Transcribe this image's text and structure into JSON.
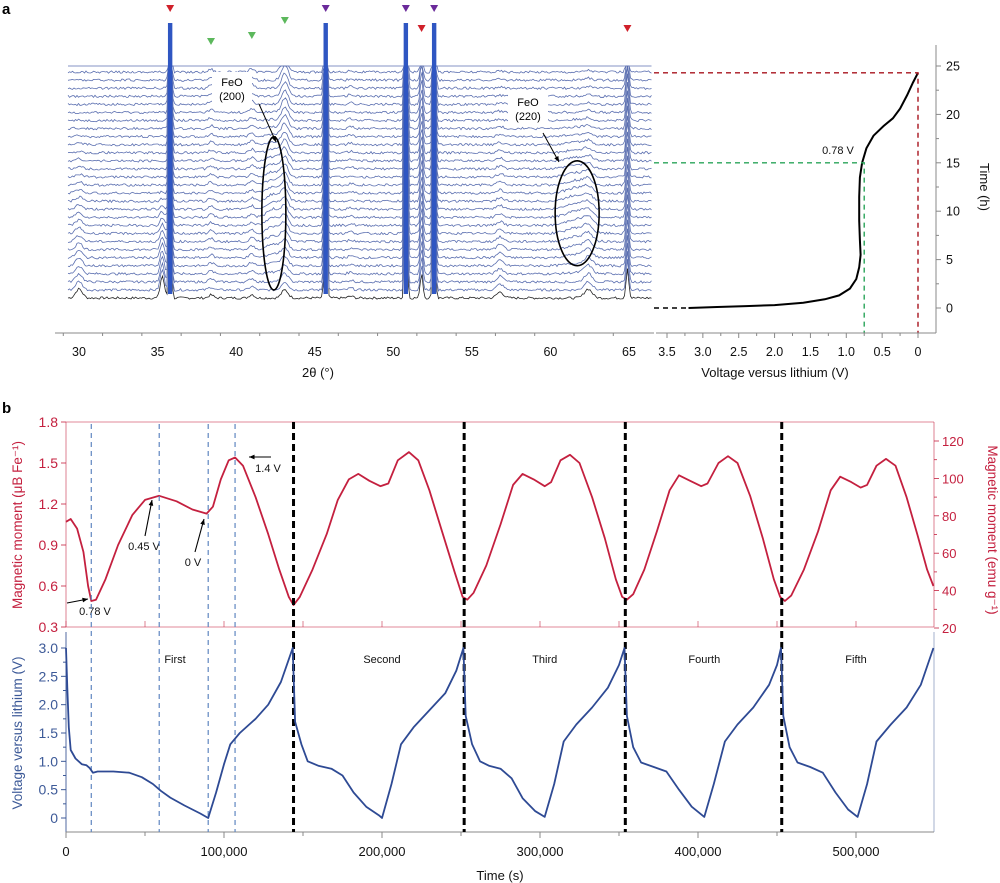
{
  "figure": {
    "panel_a_label": "a",
    "panel_b_label": "b"
  },
  "colors": {
    "xrd_trace": "#5b6fb0",
    "xrd_bottom_trace": "#222222",
    "xrd_strong_peak": "#2f56c2",
    "marker_red": "#d0202a",
    "marker_green": "#5cb85c",
    "marker_purple": "#6a2a9a",
    "magnetic": "#c4203f",
    "magnetic_axis": "#c4203f",
    "voltage": "#2e4a94",
    "voltage_axis": "#3d5a98",
    "guide_blue": "#5f86c0",
    "cycle_divider": "#000000",
    "green_guide": "#2aa45a",
    "red_guide": "#a8141e"
  },
  "chart_data": [
    {
      "id": "xrd-stack",
      "type": "line",
      "title": "",
      "xlabel": "2θ (°)",
      "ylabel": "",
      "xlim": [
        28,
        66
      ],
      "xticks": [
        30,
        35,
        40,
        45,
        50,
        55,
        60,
        65
      ],
      "trace_count": 30,
      "grid": false,
      "peaks": [
        {
          "two_theta": 30.0,
          "type": "substrate-minor",
          "rel": 0.5
        },
        {
          "two_theta": 35.3,
          "type": "minor",
          "rel": 0.8
        },
        {
          "two_theta": 35.8,
          "type": "strong",
          "rel": 8
        },
        {
          "two_theta": 38.4,
          "type": "green",
          "rel": 0.5
        },
        {
          "two_theta": 41.0,
          "type": "green",
          "rel": 0.6
        },
        {
          "two_theta": 43.1,
          "type": "green",
          "rel": 1.0
        },
        {
          "two_theta": 45.7,
          "type": "strong",
          "rel": 8
        },
        {
          "two_theta": 47.3,
          "type": "minor",
          "rel": 0.3
        },
        {
          "two_theta": 50.8,
          "type": "strong",
          "rel": 8
        },
        {
          "two_theta": 51.8,
          "type": "red",
          "rel": 2.5
        },
        {
          "two_theta": 52.6,
          "type": "strong",
          "rel": 8
        },
        {
          "two_theta": 56.8,
          "type": "minor",
          "rel": 0.4
        },
        {
          "two_theta": 62.4,
          "type": "minor",
          "rel": 0.6
        },
        {
          "two_theta": 64.9,
          "type": "red",
          "rel": 3
        }
      ],
      "markers": [
        {
          "two_theta": 35.8,
          "color": "red",
          "level": "top"
        },
        {
          "two_theta": 38.4,
          "color": "green",
          "level": "low"
        },
        {
          "two_theta": 41.0,
          "color": "green",
          "level": "mid"
        },
        {
          "two_theta": 43.1,
          "color": "green",
          "level": "high"
        },
        {
          "two_theta": 45.7,
          "color": "purple",
          "level": "top"
        },
        {
          "two_theta": 50.8,
          "color": "purple",
          "level": "top"
        },
        {
          "two_theta": 51.8,
          "color": "red",
          "level": "mid2"
        },
        {
          "two_theta": 52.6,
          "color": "purple",
          "level": "top"
        },
        {
          "two_theta": 64.9,
          "color": "red",
          "level": "mid2"
        }
      ],
      "annotations": [
        {
          "label": "FeO",
          "sublabel": "(200)",
          "ellipse_center_two_theta": 42.4,
          "ellipse_span_traces": [
            1,
            20
          ]
        },
        {
          "label": "FeO",
          "sublabel": "(220)",
          "ellipse_center_two_theta": 61.7,
          "ellipse_span_traces": [
            4,
            17
          ]
        }
      ]
    },
    {
      "id": "voltage-time",
      "type": "line",
      "title": "",
      "xlabel": "Voltage versus lithium (V)",
      "ylabel": "Time (h)",
      "xlim": [
        3.5,
        -0.2
      ],
      "ylim": [
        -2.5,
        27
      ],
      "xticks": [
        3.5,
        3.0,
        2.5,
        2.0,
        1.5,
        1.0,
        0.5,
        0
      ],
      "xtick_labels": [
        "3.5",
        "3.0",
        "2.5",
        "2.0",
        "1.5",
        "1.0",
        "0.5",
        "0"
      ],
      "yticks": [
        0,
        5,
        10,
        15,
        20,
        25
      ],
      "annotation": "0.78 V",
      "green_guide": {
        "voltage": 0.75,
        "time": 15
      },
      "red_guide": {
        "voltage": 0.0,
        "time": 24.3
      },
      "points": [
        [
          3.55,
          0.0
        ],
        [
          3.2,
          0.0
        ],
        [
          2.8,
          0.1
        ],
        [
          2.4,
          0.2
        ],
        [
          2.0,
          0.3
        ],
        [
          1.6,
          0.55
        ],
        [
          1.3,
          0.9
        ],
        [
          1.1,
          1.3
        ],
        [
          0.95,
          2.0
        ],
        [
          0.86,
          3.0
        ],
        [
          0.82,
          4.2
        ],
        [
          0.8,
          5.5
        ],
        [
          0.81,
          7.0
        ],
        [
          0.82,
          9.0
        ],
        [
          0.82,
          11.5
        ],
        [
          0.81,
          13.5
        ],
        [
          0.78,
          15.0
        ],
        [
          0.72,
          16.5
        ],
        [
          0.62,
          17.8
        ],
        [
          0.48,
          18.8
        ],
        [
          0.35,
          19.6
        ],
        [
          0.25,
          20.6
        ],
        [
          0.15,
          22.0
        ],
        [
          0.07,
          23.3
        ],
        [
          0.0,
          24.3
        ]
      ]
    },
    {
      "id": "magnetic-moment",
      "type": "line",
      "title": "",
      "xlabel": "",
      "ylabel": "Magnetic moment (μB Fe⁻¹)",
      "ylabel_right": "Magnetic moment (emu g⁻¹)",
      "xlim": [
        0,
        549000
      ],
      "ylim": [
        0.28,
        1.8
      ],
      "yticks": [
        0.3,
        0.6,
        0.9,
        1.2,
        1.5,
        1.8
      ],
      "ytick_labels": [
        "0.3",
        "0.6",
        "0.9",
        "1.2",
        "1.5",
        "1.8"
      ],
      "ylim_right": [
        20,
        127
      ],
      "yticks_right": [
        20,
        40,
        60,
        80,
        100,
        120
      ],
      "annotations": [
        {
          "label": "0.78 V",
          "time": 16000,
          "value": 0.48
        },
        {
          "label": "0.45 V",
          "time": 59000,
          "value": 1.26
        },
        {
          "label": "0 V",
          "time": 90000,
          "value": 1.13
        },
        {
          "label": "1.4 V",
          "time": 107000,
          "value": 1.54
        }
      ],
      "points": [
        [
          0,
          1.07
        ],
        [
          3000,
          1.09
        ],
        [
          7000,
          1.02
        ],
        [
          11000,
          0.85
        ],
        [
          14000,
          0.6
        ],
        [
          16000,
          0.49
        ],
        [
          19000,
          0.5
        ],
        [
          25000,
          0.65
        ],
        [
          33000,
          0.9
        ],
        [
          42000,
          1.12
        ],
        [
          50000,
          1.23
        ],
        [
          59000,
          1.26
        ],
        [
          70000,
          1.22
        ],
        [
          80000,
          1.16
        ],
        [
          89000,
          1.13
        ],
        [
          93000,
          1.18
        ],
        [
          98000,
          1.38
        ],
        [
          103000,
          1.52
        ],
        [
          107000,
          1.54
        ],
        [
          112000,
          1.48
        ],
        [
          120000,
          1.25
        ],
        [
          128000,
          0.98
        ],
        [
          135000,
          0.72
        ],
        [
          141000,
          0.52
        ],
        [
          144000,
          0.46
        ],
        [
          148000,
          0.52
        ],
        [
          156000,
          0.72
        ],
        [
          165000,
          0.98
        ],
        [
          172000,
          1.23
        ],
        [
          179000,
          1.38
        ],
        [
          185000,
          1.42
        ],
        [
          192000,
          1.37
        ],
        [
          199000,
          1.33
        ],
        [
          204000,
          1.35
        ],
        [
          210000,
          1.52
        ],
        [
          217000,
          1.58
        ],
        [
          223000,
          1.52
        ],
        [
          230000,
          1.3
        ],
        [
          238000,
          1.0
        ],
        [
          246000,
          0.7
        ],
        [
          251000,
          0.52
        ],
        [
          254000,
          0.5
        ],
        [
          258000,
          0.55
        ],
        [
          266000,
          0.75
        ],
        [
          275000,
          1.05
        ],
        [
          283000,
          1.34
        ],
        [
          289000,
          1.42
        ],
        [
          296000,
          1.38
        ],
        [
          303000,
          1.33
        ],
        [
          307000,
          1.36
        ],
        [
          313000,
          1.52
        ],
        [
          319000,
          1.56
        ],
        [
          325000,
          1.5
        ],
        [
          333000,
          1.25
        ],
        [
          341000,
          0.95
        ],
        [
          348000,
          0.65
        ],
        [
          352000,
          0.52
        ],
        [
          355000,
          0.5
        ],
        [
          359000,
          0.54
        ],
        [
          366000,
          0.72
        ],
        [
          374000,
          1.0
        ],
        [
          382000,
          1.3
        ],
        [
          388000,
          1.41
        ],
        [
          395000,
          1.37
        ],
        [
          402000,
          1.33
        ],
        [
          406000,
          1.35
        ],
        [
          413000,
          1.5
        ],
        [
          419000,
          1.55
        ],
        [
          425000,
          1.5
        ],
        [
          433000,
          1.26
        ],
        [
          441000,
          0.95
        ],
        [
          448000,
          0.65
        ],
        [
          452000,
          0.52
        ],
        [
          455000,
          0.49
        ],
        [
          459000,
          0.53
        ],
        [
          467000,
          0.72
        ],
        [
          476000,
          1.0
        ],
        [
          484000,
          1.3
        ],
        [
          490000,
          1.4
        ],
        [
          497000,
          1.36
        ],
        [
          503000,
          1.32
        ],
        [
          507000,
          1.34
        ],
        [
          513000,
          1.48
        ],
        [
          519000,
          1.53
        ],
        [
          525000,
          1.48
        ],
        [
          532000,
          1.25
        ],
        [
          539000,
          0.97
        ],
        [
          545000,
          0.72
        ],
        [
          549000,
          0.6
        ]
      ]
    },
    {
      "id": "voltage-cycles",
      "type": "line",
      "title": "",
      "xlabel": "Time (s)",
      "ylabel": "Voltage versus lithium (V)",
      "xlim": [
        0,
        549000
      ],
      "ylim": [
        -0.25,
        3.3
      ],
      "xticks": [
        0,
        100000,
        200000,
        300000,
        400000,
        500000
      ],
      "xtick_labels": [
        "0",
        "100,000",
        "200,000",
        "300,000",
        "400,000",
        "500,000"
      ],
      "yticks": [
        0,
        0.5,
        1.0,
        1.5,
        2.0,
        2.5,
        3.0
      ],
      "ytick_labels": [
        "0",
        "0.5",
        "1.0",
        "1.5",
        "2.0",
        "2.5",
        "3.0"
      ],
      "cycle_labels": [
        {
          "label": "First",
          "time": 69000
        },
        {
          "label": "Second",
          "time": 200000
        },
        {
          "label": "Third",
          "time": 303000
        },
        {
          "label": "Fourth",
          "time": 404000
        },
        {
          "label": "Fifth",
          "time": 500000
        }
      ],
      "cycle_boundaries": [
        144000,
        252000,
        354000,
        453000
      ],
      "guide_lines": [
        16000,
        59000,
        90000,
        107000
      ],
      "points": [
        [
          0,
          3.0
        ],
        [
          800,
          2.3
        ],
        [
          1800,
          1.6
        ],
        [
          3000,
          1.2
        ],
        [
          6000,
          1.05
        ],
        [
          10000,
          0.95
        ],
        [
          13000,
          0.93
        ],
        [
          15000,
          0.88
        ],
        [
          17000,
          0.8
        ],
        [
          20000,
          0.82
        ],
        [
          30000,
          0.82
        ],
        [
          40000,
          0.8
        ],
        [
          48000,
          0.72
        ],
        [
          55000,
          0.6
        ],
        [
          60000,
          0.48
        ],
        [
          66000,
          0.36
        ],
        [
          75000,
          0.22
        ],
        [
          85000,
          0.08
        ],
        [
          90000,
          0.0
        ],
        [
          95000,
          0.45
        ],
        [
          100000,
          0.95
        ],
        [
          104000,
          1.3
        ],
        [
          110000,
          1.5
        ],
        [
          120000,
          1.75
        ],
        [
          128000,
          2.0
        ],
        [
          136000,
          2.4
        ],
        [
          141000,
          2.8
        ],
        [
          143500,
          3.0
        ],
        [
          145000,
          1.7
        ],
        [
          149000,
          1.3
        ],
        [
          153000,
          1.0
        ],
        [
          160000,
          0.92
        ],
        [
          168000,
          0.87
        ],
        [
          175000,
          0.75
        ],
        [
          182000,
          0.45
        ],
        [
          190000,
          0.2
        ],
        [
          198000,
          0.05
        ],
        [
          200000,
          0.0
        ],
        [
          206000,
          0.6
        ],
        [
          212000,
          1.3
        ],
        [
          220000,
          1.6
        ],
        [
          230000,
          1.9
        ],
        [
          240000,
          2.2
        ],
        [
          247000,
          2.6
        ],
        [
          251500,
          3.0
        ],
        [
          253000,
          1.8
        ],
        [
          257000,
          1.3
        ],
        [
          262000,
          1.0
        ],
        [
          268000,
          0.92
        ],
        [
          275000,
          0.87
        ],
        [
          282000,
          0.7
        ],
        [
          289000,
          0.35
        ],
        [
          297000,
          0.12
        ],
        [
          303000,
          0.02
        ],
        [
          309000,
          0.6
        ],
        [
          315000,
          1.35
        ],
        [
          323000,
          1.65
        ],
        [
          333000,
          1.95
        ],
        [
          343000,
          2.3
        ],
        [
          350000,
          2.7
        ],
        [
          353500,
          3.0
        ],
        [
          355000,
          1.8
        ],
        [
          359000,
          1.25
        ],
        [
          364000,
          0.98
        ],
        [
          372000,
          0.9
        ],
        [
          380000,
          0.82
        ],
        [
          388000,
          0.5
        ],
        [
          396000,
          0.2
        ],
        [
          404000,
          0.02
        ],
        [
          410000,
          0.6
        ],
        [
          417000,
          1.35
        ],
        [
          425000,
          1.65
        ],
        [
          435000,
          1.95
        ],
        [
          445000,
          2.35
        ],
        [
          450000,
          2.7
        ],
        [
          452500,
          3.0
        ],
        [
          454000,
          1.8
        ],
        [
          458000,
          1.25
        ],
        [
          463000,
          0.98
        ],
        [
          471000,
          0.9
        ],
        [
          479000,
          0.8
        ],
        [
          487000,
          0.45
        ],
        [
          495000,
          0.15
        ],
        [
          501000,
          0.02
        ],
        [
          507000,
          0.6
        ],
        [
          513000,
          1.35
        ],
        [
          522000,
          1.65
        ],
        [
          532000,
          1.95
        ],
        [
          541000,
          2.35
        ],
        [
          549000,
          3.0
        ]
      ]
    }
  ]
}
